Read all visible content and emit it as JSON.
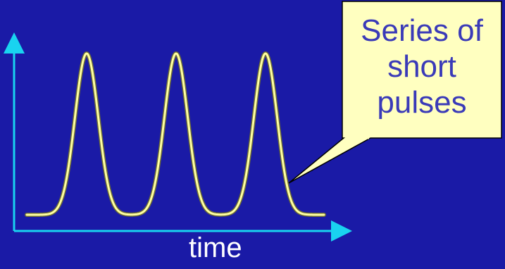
{
  "diagram": {
    "xlabel": "time",
    "callout": {
      "lines": [
        "Series of",
        "short",
        "pulses"
      ]
    },
    "pulse_count": 3,
    "colors": {
      "background": "#1a1aa6",
      "axis": "#19d3f0",
      "pulse": "#ffffa0",
      "pulse_outline": "#6b6b3a",
      "callout_fill": "#ffffc0",
      "callout_text": "#3a3ab8"
    }
  }
}
